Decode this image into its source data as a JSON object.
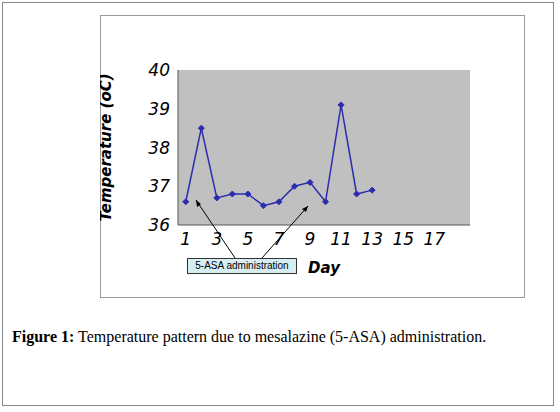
{
  "chart_data": {
    "type": "line",
    "figure_label": "Figure 1:",
    "caption": "Temperature pattern due to mesalazine (5-ASA) administration.",
    "x_label": "Day",
    "y_label": "Temperature (oC)",
    "annotation": "5-ASA administration",
    "x": [
      1,
      2,
      3,
      4,
      5,
      6,
      7,
      8,
      9,
      10,
      11,
      12,
      13
    ],
    "values": [
      36.6,
      38.5,
      36.7,
      36.8,
      36.8,
      36.5,
      36.6,
      37.0,
      37.1,
      36.6,
      39.1,
      36.8,
      36.9
    ],
    "color": "#2b2bb0",
    "marker": "diamond",
    "xlim": [
      0.5,
      19.3
    ],
    "xticks": [
      1,
      3,
      5,
      7,
      9,
      11,
      13,
      15,
      17
    ],
    "ylim": [
      36,
      40
    ],
    "yticks": [
      36,
      37,
      38,
      39,
      40
    ],
    "grid": false
  }
}
